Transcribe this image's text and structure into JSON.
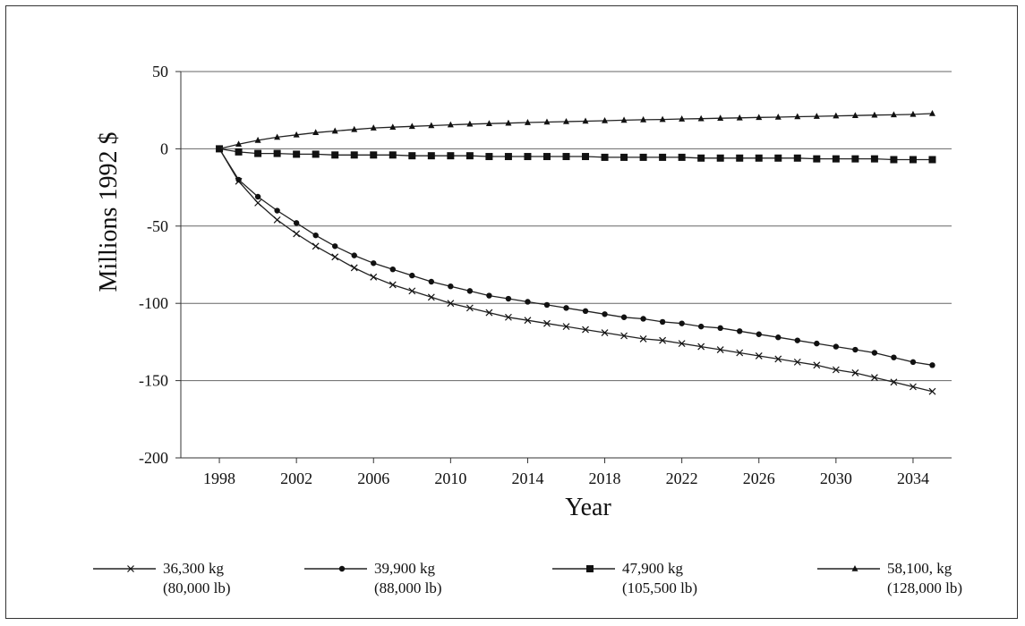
{
  "chart_data": {
    "type": "line",
    "title": "",
    "xlabel": "Year",
    "ylabel": "Millions 1992 $",
    "xlim": [
      1996,
      2036
    ],
    "ylim": [
      -200,
      50
    ],
    "xticks": [
      1998,
      2002,
      2006,
      2010,
      2014,
      2018,
      2022,
      2026,
      2030,
      2034
    ],
    "yticks": [
      50,
      0,
      -50,
      -100,
      -150,
      -200
    ],
    "grid": "horizontal",
    "legend_position": "bottom",
    "series": [
      {
        "name": "36,300 kg",
        "name_line2": "(80,000 lb)",
        "marker": "x",
        "x": [
          1998,
          1999,
          2000,
          2001,
          2002,
          2003,
          2004,
          2005,
          2006,
          2007,
          2008,
          2009,
          2010,
          2011,
          2012,
          2013,
          2014,
          2015,
          2016,
          2017,
          2018,
          2019,
          2020,
          2021,
          2022,
          2023,
          2024,
          2025,
          2026,
          2027,
          2028,
          2029,
          2030,
          2031,
          2032,
          2033,
          2034,
          2035
        ],
        "values": [
          0,
          -21,
          -35,
          -46,
          -55,
          -63,
          -70,
          -77,
          -83,
          -88,
          -92,
          -96,
          -100,
          -103,
          -106,
          -109,
          -111,
          -113,
          -115,
          -117,
          -119,
          -121,
          -123,
          -124,
          -126,
          -128,
          -130,
          -132,
          -134,
          -136,
          -138,
          -140,
          -143,
          -145,
          -148,
          -151,
          -154,
          -157
        ]
      },
      {
        "name": "39,900 kg",
        "name_line2": "(88,000 lb)",
        "marker": "circle",
        "x": [
          1998,
          1999,
          2000,
          2001,
          2002,
          2003,
          2004,
          2005,
          2006,
          2007,
          2008,
          2009,
          2010,
          2011,
          2012,
          2013,
          2014,
          2015,
          2016,
          2017,
          2018,
          2019,
          2020,
          2021,
          2022,
          2023,
          2024,
          2025,
          2026,
          2027,
          2028,
          2029,
          2030,
          2031,
          2032,
          2033,
          2034,
          2035
        ],
        "values": [
          0,
          -20,
          -31,
          -40,
          -48,
          -56,
          -63,
          -69,
          -74,
          -78,
          -82,
          -86,
          -89,
          -92,
          -95,
          -97,
          -99,
          -101,
          -103,
          -105,
          -107,
          -109,
          -110,
          -112,
          -113,
          -115,
          -116,
          -118,
          -120,
          -122,
          -124,
          -126,
          -128,
          -130,
          -132,
          -135,
          -138,
          -140
        ]
      },
      {
        "name": "47,900 kg",
        "name_line2": "(105,500 lb)",
        "marker": "square",
        "x": [
          1998,
          1999,
          2000,
          2001,
          2002,
          2003,
          2004,
          2005,
          2006,
          2007,
          2008,
          2009,
          2010,
          2011,
          2012,
          2013,
          2014,
          2015,
          2016,
          2017,
          2018,
          2019,
          2020,
          2021,
          2022,
          2023,
          2024,
          2025,
          2026,
          2027,
          2028,
          2029,
          2030,
          2031,
          2032,
          2033,
          2034,
          2035
        ],
        "values": [
          0,
          -2,
          -3,
          -3,
          -3.5,
          -3.5,
          -4,
          -4,
          -4,
          -4,
          -4.5,
          -4.5,
          -4.5,
          -4.5,
          -5,
          -5,
          -5,
          -5,
          -5,
          -5,
          -5.5,
          -5.5,
          -5.5,
          -5.5,
          -5.5,
          -6,
          -6,
          -6,
          -6,
          -6,
          -6,
          -6.5,
          -6.5,
          -6.5,
          -6.5,
          -7,
          -7,
          -7
        ]
      },
      {
        "name": "58,100, kg",
        "name_line2": "(128,000 lb)",
        "marker": "triangle",
        "x": [
          1998,
          1999,
          2000,
          2001,
          2002,
          2003,
          2004,
          2005,
          2006,
          2007,
          2008,
          2009,
          2010,
          2011,
          2012,
          2013,
          2014,
          2015,
          2016,
          2017,
          2018,
          2019,
          2020,
          2021,
          2022,
          2023,
          2024,
          2025,
          2026,
          2027,
          2028,
          2029,
          2030,
          2031,
          2032,
          2033,
          2034,
          2035
        ],
        "values": [
          0,
          3,
          5.5,
          7.5,
          9,
          10.5,
          11.5,
          12.5,
          13.5,
          14,
          14.5,
          15,
          15.5,
          16,
          16.3,
          16.6,
          17,
          17.3,
          17.6,
          17.9,
          18.2,
          18.5,
          18.8,
          19,
          19.3,
          19.5,
          19.8,
          20,
          20.3,
          20.5,
          20.8,
          21,
          21.3,
          21.5,
          21.8,
          22,
          22.3,
          22.8
        ]
      }
    ]
  }
}
